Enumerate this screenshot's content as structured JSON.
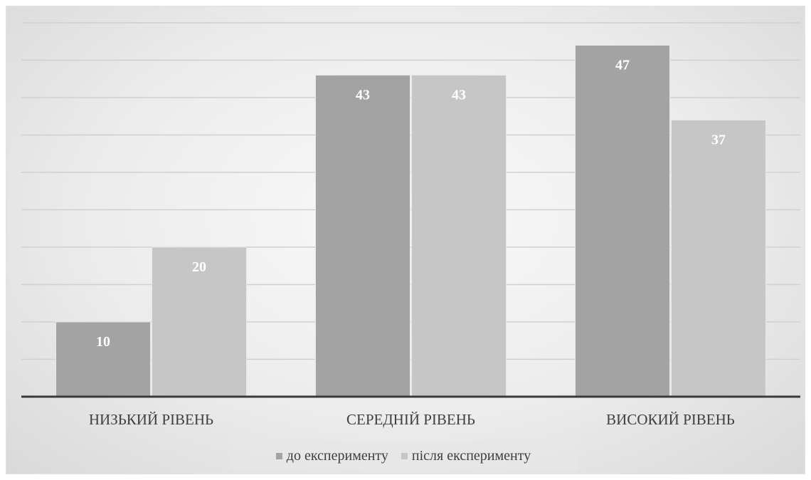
{
  "chart_data": {
    "type": "bar",
    "categories": [
      "НИЗЬКИЙ РІВЕНЬ",
      "СЕРЕДНІЙ РІВЕНЬ",
      "ВИСОКИЙ РІВЕНЬ"
    ],
    "series": [
      {
        "name": "до експерименту",
        "values": [
          10,
          43,
          47
        ],
        "color": "#a3a3a3"
      },
      {
        "name": "після експерименту",
        "values": [
          20,
          43,
          37
        ],
        "color": "#c6c6c6"
      }
    ],
    "title": "",
    "xlabel": "",
    "ylabel": "",
    "ylim": [
      0,
      50
    ],
    "grid": true,
    "legend_position": "bottom"
  }
}
